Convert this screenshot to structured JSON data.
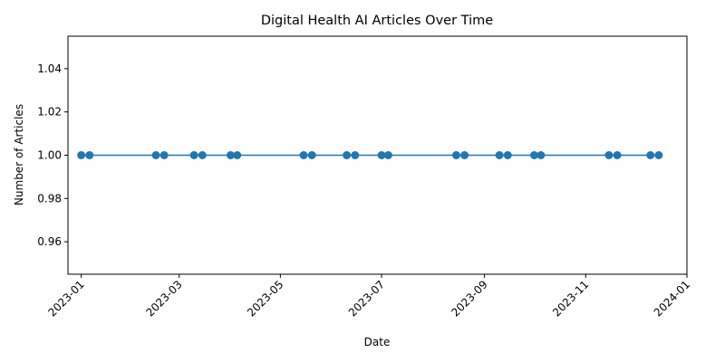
{
  "chart_data": {
    "type": "line",
    "title": "Digital Health AI Articles Over Time",
    "xlabel": "Date",
    "ylabel": "Number of Articles",
    "xlim": [
      "2022-12-24",
      "2024-01-01"
    ],
    "ylim": [
      0.945,
      1.055
    ],
    "x_ticks": [
      "2023-01",
      "2023-03",
      "2023-05",
      "2023-07",
      "2023-09",
      "2023-11",
      "2024-01"
    ],
    "y_ticks": [
      0.96,
      0.98,
      1.0,
      1.02,
      1.04
    ],
    "y_tick_labels": [
      "0.96",
      "0.98",
      "1.00",
      "1.02",
      "1.04"
    ],
    "grid": false,
    "line_color": "#1f77b4",
    "series": [
      {
        "x": [
          "2023-01-01",
          "2023-01-06",
          "2023-02-15",
          "2023-02-20",
          "2023-03-10",
          "2023-03-15",
          "2023-04-01",
          "2023-04-05",
          "2023-05-15",
          "2023-05-20",
          "2023-06-10",
          "2023-06-15",
          "2023-07-01",
          "2023-07-05",
          "2023-08-15",
          "2023-08-20",
          "2023-09-10",
          "2023-09-15",
          "2023-10-01",
          "2023-10-05",
          "2023-11-15",
          "2023-11-20",
          "2023-12-10",
          "2023-12-15"
        ],
        "values": [
          1,
          1,
          1,
          1,
          1,
          1,
          1,
          1,
          1,
          1,
          1,
          1,
          1,
          1,
          1,
          1,
          1,
          1,
          1,
          1,
          1,
          1,
          1,
          1
        ]
      }
    ]
  }
}
